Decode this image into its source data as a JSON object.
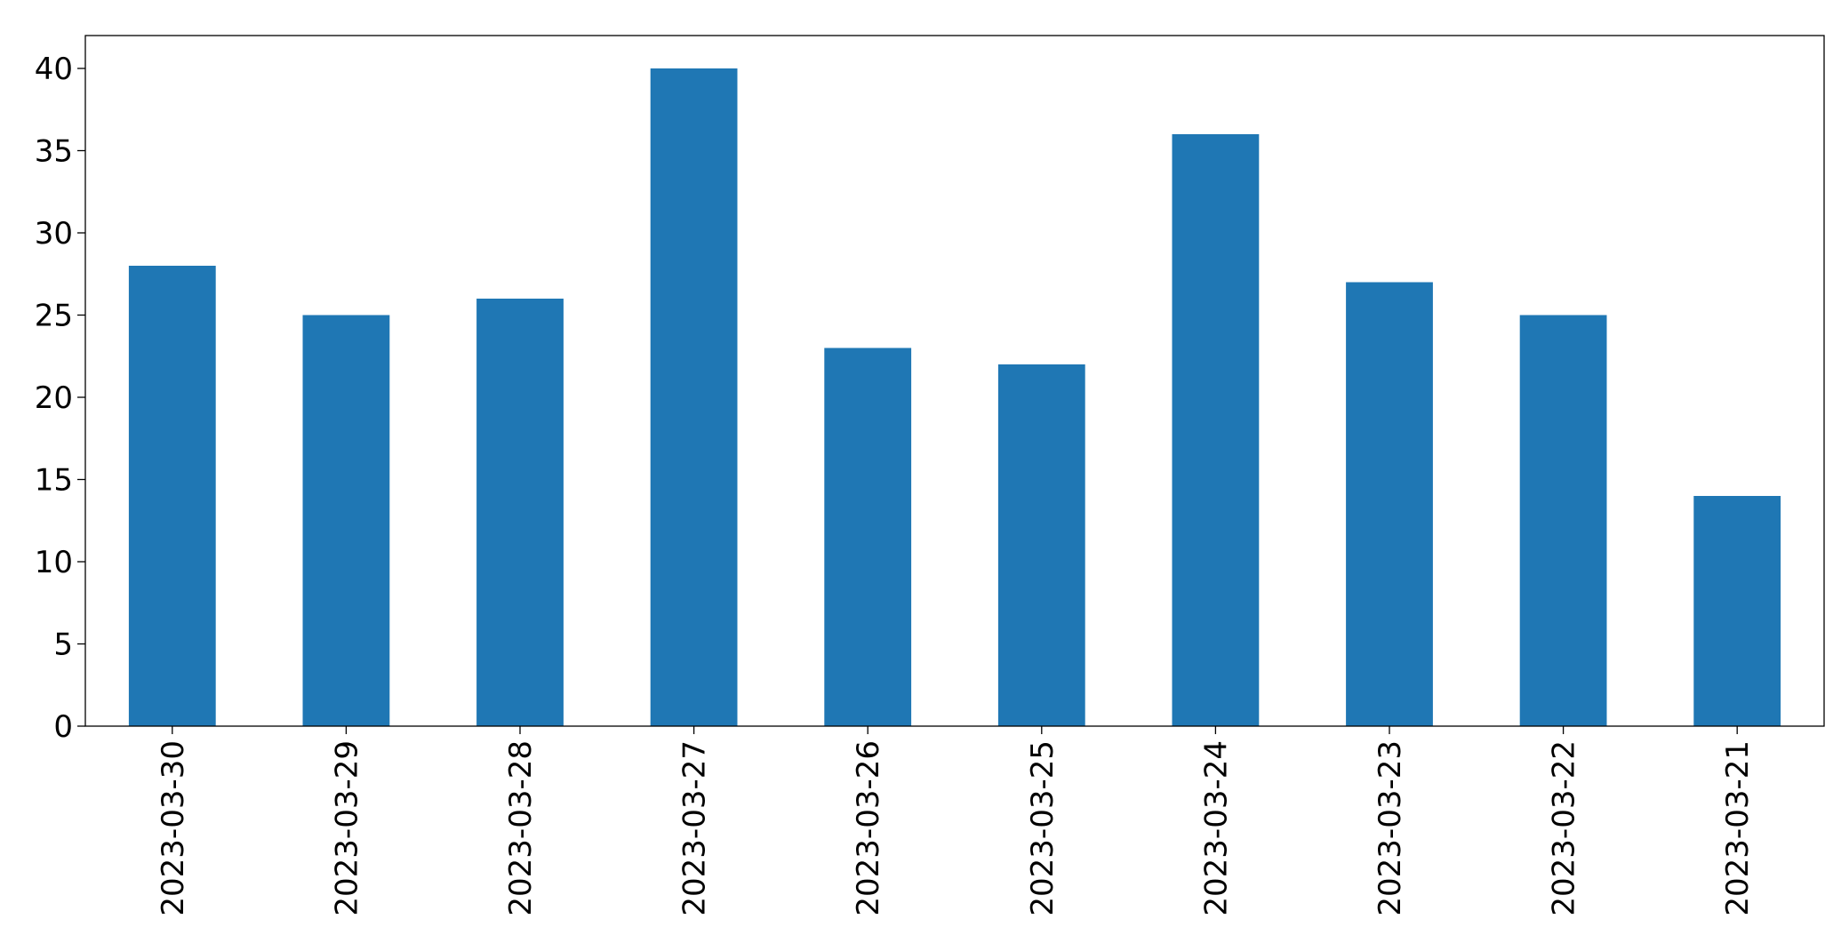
{
  "chart_data": {
    "type": "bar",
    "categories": [
      "2023-03-30",
      "2023-03-29",
      "2023-03-28",
      "2023-03-27",
      "2023-03-26",
      "2023-03-25",
      "2023-03-24",
      "2023-03-23",
      "2023-03-22",
      "2023-03-21"
    ],
    "values": [
      28,
      25,
      26,
      40,
      23,
      22,
      36,
      27,
      25,
      14
    ],
    "color": "#1f77b4",
    "ylim": [
      0,
      42
    ],
    "yticks": [
      0,
      5,
      10,
      15,
      20,
      25,
      30,
      35,
      40
    ],
    "grid": false
  }
}
